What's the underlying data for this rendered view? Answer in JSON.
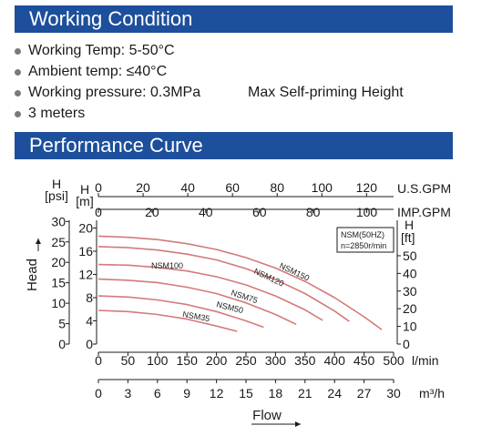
{
  "working": {
    "title": "Working Condition",
    "items": [
      {
        "text": "Working Temp: 5-50°C",
        "extra": ""
      },
      {
        "text": "Ambient temp: ≤40°C",
        "extra": ""
      },
      {
        "text": "Working pressure: 0.3MPa",
        "extra": "Max Self-priming Height"
      },
      {
        "text": "3 meters",
        "extra": ""
      }
    ]
  },
  "performance": {
    "title": "Performance Curve"
  },
  "chart_data": {
    "type": "line",
    "title": "",
    "xlabel": "Flow",
    "ylabel": "Head",
    "grid": false,
    "legend": "none",
    "series_color": "#d47a7a",
    "x_axes": [
      {
        "unit": "U.S.GPM",
        "ticks": [
          "0",
          "20",
          "40",
          "60",
          "80",
          "100",
          "120"
        ],
        "range": [
          0,
          132.1
        ]
      },
      {
        "unit": "IMP.GPM",
        "ticks": [
          "0",
          "20",
          "40",
          "60",
          "80",
          "100"
        ],
        "range": [
          0,
          110
        ]
      },
      {
        "unit": "l/min",
        "ticks": [
          "0",
          "50",
          "100",
          "150",
          "200",
          "250",
          "300",
          "350",
          "400",
          "450",
          "500"
        ],
        "range": [
          0,
          500
        ]
      },
      {
        "unit": "m³/h",
        "ticks": [
          "0",
          "3",
          "6",
          "9",
          "12",
          "15",
          "18",
          "21",
          "24",
          "27",
          "30"
        ],
        "range": [
          0,
          30
        ]
      }
    ],
    "y_axes": [
      {
        "unit_top": "H",
        "unit": "[psi]",
        "ticks": [
          "0",
          "5",
          "10",
          "15",
          "20",
          "25",
          "30"
        ],
        "range": [
          0,
          29.4
        ]
      },
      {
        "unit_top": "H",
        "unit": "[m]",
        "ticks": [
          "0",
          "4",
          "8",
          "12",
          "16",
          "20"
        ],
        "range": [
          0,
          20.7
        ]
      },
      {
        "unit_top": "H",
        "unit": "[ft]",
        "ticks": [
          "0",
          "10",
          "20",
          "30",
          "40",
          "50"
        ],
        "range": [
          0,
          68
        ]
      }
    ],
    "annotation": [
      "NSM(50HZ)",
      "n=2850r/min"
    ],
    "x_unit": "l/min",
    "y_unit": "m",
    "series": [
      {
        "name": "NSM35",
        "x": [
          0,
          50,
          100,
          150,
          200,
          235
        ],
        "y": [
          5.8,
          5.6,
          5.1,
          4.3,
          3.1,
          2.2
        ]
      },
      {
        "name": "NSM50",
        "x": [
          0,
          50,
          100,
          150,
          200,
          250,
          280
        ],
        "y": [
          8.3,
          8.1,
          7.6,
          6.8,
          5.6,
          4.0,
          2.9
        ]
      },
      {
        "name": "NSM75",
        "x": [
          0,
          50,
          100,
          150,
          200,
          250,
          300,
          335
        ],
        "y": [
          11.2,
          11.0,
          10.6,
          9.8,
          8.7,
          7.1,
          5.1,
          3.4
        ]
      },
      {
        "name": "NSM100",
        "x": [
          0,
          50,
          100,
          150,
          200,
          250,
          300,
          350,
          380
        ],
        "y": [
          13.7,
          13.6,
          13.2,
          12.6,
          11.6,
          10.2,
          8.3,
          5.9,
          4.1
        ]
      },
      {
        "name": "NSM120",
        "x": [
          0,
          50,
          100,
          150,
          200,
          250,
          300,
          350,
          400,
          425
        ],
        "y": [
          16.8,
          16.6,
          16.2,
          15.5,
          14.5,
          13.0,
          11.1,
          8.7,
          5.7,
          3.9
        ]
      },
      {
        "name": "NSM150",
        "x": [
          0,
          50,
          100,
          150,
          200,
          250,
          300,
          350,
          400,
          450,
          480
        ],
        "y": [
          18.6,
          18.4,
          18.0,
          17.3,
          16.3,
          14.9,
          13.1,
          10.8,
          8.0,
          4.7,
          2.5
        ]
      }
    ]
  }
}
